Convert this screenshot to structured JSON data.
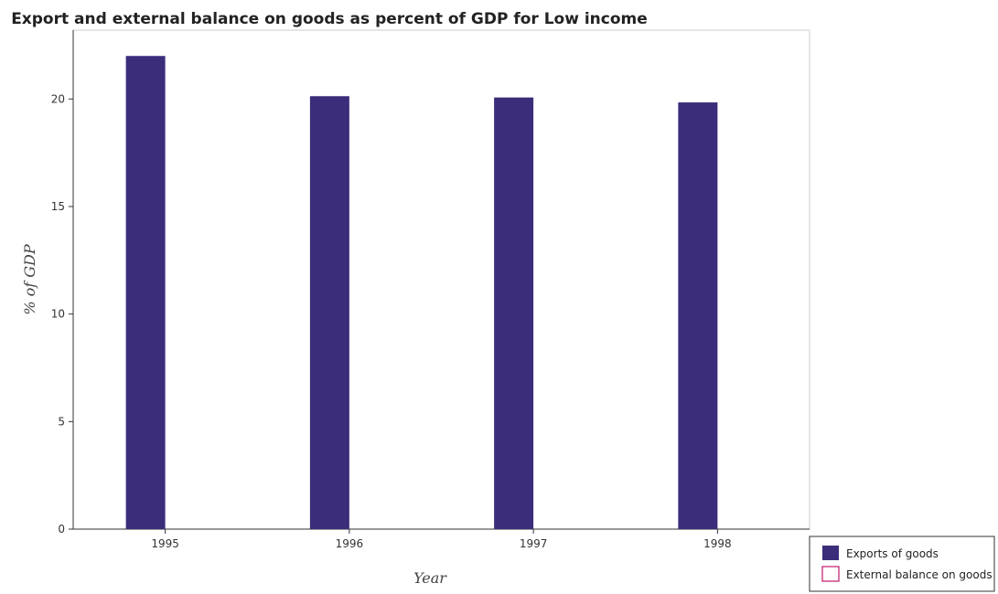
{
  "chart_data": {
    "type": "bar",
    "title": "Export and external balance on goods as percent of GDP for Low income",
    "xlabel": "Year",
    "ylabel": "% of GDP",
    "categories": [
      "1995",
      "1996",
      "1997",
      "1998"
    ],
    "series": [
      {
        "name": "Exports of goods",
        "values": [
          22.0,
          20.13,
          20.07,
          19.84
        ],
        "color": "#3b2d7a"
      },
      {
        "name": "External balance on goods",
        "values": [
          0,
          0,
          0,
          0
        ],
        "color": "#c0166b"
      }
    ],
    "ylim": [
      0,
      23.2
    ],
    "yticks": [
      0,
      5,
      10,
      15,
      20
    ],
    "grid": false,
    "legend_position": "bottom-right"
  }
}
